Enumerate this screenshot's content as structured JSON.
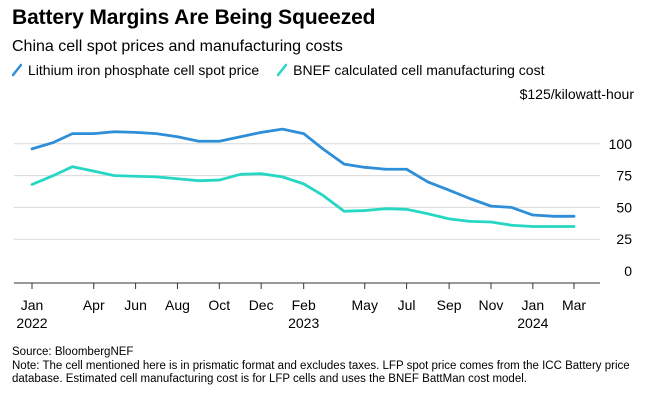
{
  "title": "Battery Margins Are Being Squeezed",
  "subtitle": "China cell spot prices and manufacturing costs",
  "unit_label": "$125/kilowatt-hour",
  "source": "Source: BloombergNEF",
  "note": "Note: The cell mentioned here is in prismatic format and excludes taxes. LFP spot price comes from the ICC Battery price database. Estimated cell manufacturing cost is for LFP cells and uses the BNEF BattMan cost model.",
  "colors": {
    "lfp_spot": "#2e8fd8",
    "bnef_cost": "#26d7c3",
    "grid": "#d9d9d9",
    "axis": "#333333"
  },
  "chart_data": {
    "type": "line",
    "title": "Battery Margins Are Being Squeezed",
    "subtitle": "China cell spot prices and manufacturing costs",
    "ylabel": "$125/kilowatt-hour",
    "ylim": [
      0,
      125
    ],
    "yticks": [
      0,
      25,
      50,
      75,
      100
    ],
    "grid": true,
    "legend_position": "top-left",
    "x_ticks": [
      {
        "x": "2022-01-01",
        "label": "Jan",
        "sublabel": "2022"
      },
      {
        "x": "2022-04-01",
        "label": "Apr",
        "sublabel": ""
      },
      {
        "x": "2022-06-01",
        "label": "Jun",
        "sublabel": ""
      },
      {
        "x": "2022-08-01",
        "label": "Aug",
        "sublabel": ""
      },
      {
        "x": "2022-10-01",
        "label": "Oct",
        "sublabel": ""
      },
      {
        "x": "2022-12-01",
        "label": "Dec",
        "sublabel": ""
      },
      {
        "x": "2023-02-01",
        "label": "Feb",
        "sublabel": "2023"
      },
      {
        "x": "2023-05-01",
        "label": "May",
        "sublabel": ""
      },
      {
        "x": "2023-07-01",
        "label": "Jul",
        "sublabel": ""
      },
      {
        "x": "2023-09-01",
        "label": "Sep",
        "sublabel": ""
      },
      {
        "x": "2023-11-01",
        "label": "Nov",
        "sublabel": ""
      },
      {
        "x": "2024-01-01",
        "label": "Jan",
        "sublabel": "2024"
      },
      {
        "x": "2024-03-01",
        "label": "Mar",
        "sublabel": ""
      }
    ],
    "xlim": [
      "2022-01-01",
      "2024-03-01"
    ],
    "series": [
      {
        "name": "Lithium iron phosphate cell spot price",
        "color_key": "lfp_spot",
        "points": [
          [
            "2022-01-01",
            96
          ],
          [
            "2022-02-01",
            101
          ],
          [
            "2022-03-01",
            108
          ],
          [
            "2022-04-01",
            108
          ],
          [
            "2022-05-01",
            109.5
          ],
          [
            "2022-06-01",
            109
          ],
          [
            "2022-07-01",
            108
          ],
          [
            "2022-08-01",
            105.5
          ],
          [
            "2022-09-01",
            102
          ],
          [
            "2022-10-01",
            102
          ],
          [
            "2022-11-01",
            105.5
          ],
          [
            "2022-12-01",
            109
          ],
          [
            "2023-01-01",
            111.5
          ],
          [
            "2023-02-01",
            108
          ],
          [
            "2023-03-01",
            96
          ],
          [
            "2023-04-01",
            84
          ],
          [
            "2023-05-01",
            81.5
          ],
          [
            "2023-06-01",
            80
          ],
          [
            "2023-07-01",
            80
          ],
          [
            "2023-08-01",
            70
          ],
          [
            "2023-09-01",
            63.5
          ],
          [
            "2023-10-01",
            57
          ],
          [
            "2023-11-01",
            51
          ],
          [
            "2023-12-01",
            50
          ],
          [
            "2024-01-01",
            44
          ],
          [
            "2024-02-01",
            43
          ],
          [
            "2024-03-01",
            43
          ]
        ]
      },
      {
        "name": "BNEF calculated cell manufacturing cost",
        "color_key": "bnef_cost",
        "points": [
          [
            "2022-01-01",
            68
          ],
          [
            "2022-02-01",
            75
          ],
          [
            "2022-03-01",
            82
          ],
          [
            "2022-04-01",
            78.5
          ],
          [
            "2022-05-01",
            75
          ],
          [
            "2022-06-01",
            74.5
          ],
          [
            "2022-07-01",
            74
          ],
          [
            "2022-08-01",
            72.5
          ],
          [
            "2022-09-01",
            71
          ],
          [
            "2022-10-01",
            71.5
          ],
          [
            "2022-11-01",
            76
          ],
          [
            "2022-12-01",
            76.5
          ],
          [
            "2023-01-01",
            74
          ],
          [
            "2023-02-01",
            68.5
          ],
          [
            "2023-03-01",
            59.5
          ],
          [
            "2023-04-01",
            47
          ],
          [
            "2023-05-01",
            47.5
          ],
          [
            "2023-06-01",
            49
          ],
          [
            "2023-07-01",
            48.5
          ],
          [
            "2023-08-01",
            45
          ],
          [
            "2023-09-01",
            41
          ],
          [
            "2023-10-01",
            39
          ],
          [
            "2023-11-01",
            38.5
          ],
          [
            "2023-12-01",
            36
          ],
          [
            "2024-01-01",
            35
          ],
          [
            "2024-02-01",
            35
          ],
          [
            "2024-03-01",
            35
          ]
        ]
      }
    ]
  }
}
